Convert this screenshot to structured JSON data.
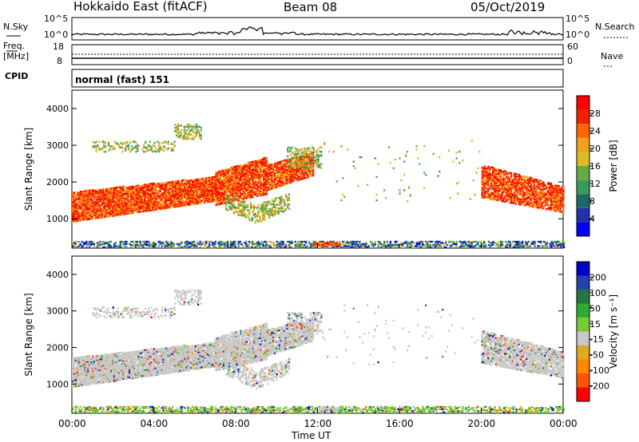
{
  "header": {
    "station": "Hokkaido East (fitACF)",
    "beam": "Beam 08",
    "date": "05/Oct/2019"
  },
  "strips": {
    "nsky_label": "N.Sky",
    "nsky_ticks": [
      "10^5",
      "10^0"
    ],
    "nsearch_label": "N.Search",
    "nsearch_ticks": [
      "10^5",
      "10^0"
    ],
    "freq_label": "Freq.",
    "freq_unit": "[MHz]",
    "freq_ticks": [
      "18",
      "8"
    ],
    "nave_label": "Nave",
    "nave_ticks": [
      "60",
      "0"
    ],
    "cpid_label": "CPID",
    "cpid_value": "normal (fast) 151"
  },
  "chart_data": [
    {
      "type": "heatmap",
      "name": "Power",
      "ylabel": "Slant Range [km]",
      "yticks": [
        "1000",
        "2000",
        "3000",
        "4000"
      ],
      "ylim": [
        200,
        4500
      ],
      "xlim": [
        0,
        24
      ],
      "colorbar_label": "Power [dB]",
      "colorbar_ticks": [
        "4",
        "8",
        "12",
        "16",
        "20",
        "24",
        "28"
      ],
      "colors": [
        "#0000ff",
        "#2233aa",
        "#1a6a6a",
        "#3a9a5a",
        "#66aa44",
        "#ddbb22",
        "#f0a020",
        "#ff6600",
        "#ee2200",
        "#ff0000"
      ]
    },
    {
      "type": "heatmap",
      "name": "Velocity",
      "ylabel": "Slant Range [km]",
      "yticks": [
        "1000",
        "2000",
        "3000",
        "4000"
      ],
      "ylim": [
        200,
        4500
      ],
      "xlim": [
        0,
        24
      ],
      "colorbar_label": "Velocity [m s⁻¹]",
      "colorbar_ticks": [
        "200",
        "100",
        "50",
        "15",
        "-15",
        "-50",
        "-100",
        "-200"
      ],
      "colors": [
        "#0000cc",
        "#2244aa",
        "#227744",
        "#33aa33",
        "#77cc33",
        "#c8c8c8",
        "#ddaa22",
        "#ff8800",
        "#ff5500",
        "#ff0000"
      ]
    }
  ],
  "xaxis": {
    "label": "Time UT",
    "ticks": [
      "00:00",
      "04:00",
      "08:00",
      "12:00",
      "16:00",
      "20:00",
      "00:00"
    ]
  }
}
